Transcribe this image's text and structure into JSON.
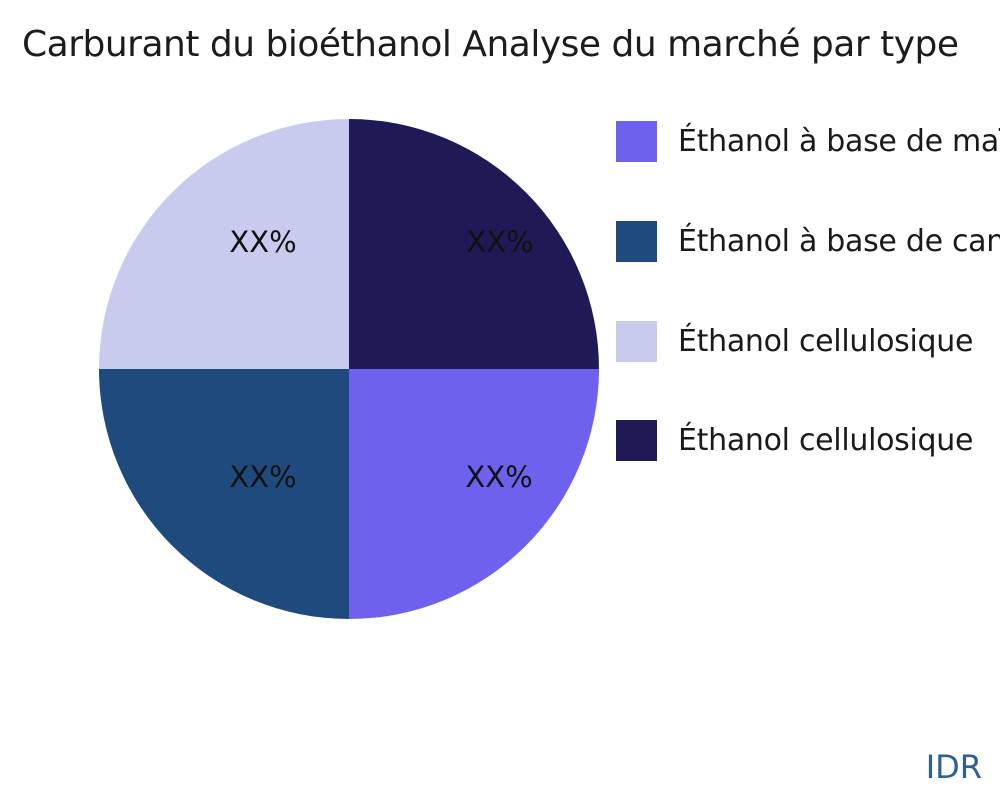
{
  "title": "Carburant du bioéthanol Analyse du marché par type",
  "watermark": "IDR",
  "colors": {
    "background": "#ffffff",
    "title_text": "#1c1c1c",
    "label_text": "#111111",
    "watermark_text": "#2e6193"
  },
  "chart_data": {
    "type": "pie",
    "title": "Carburant du bioéthanol Analyse du marché par type",
    "legend_position": "right",
    "slices": [
      {
        "label": "Éthanol à base de maïs",
        "value_pct": 25,
        "pct_label": "XX%",
        "color": "#6e61ee",
        "quadrant": "bottom-right"
      },
      {
        "label": "Éthanol à base de canne à sucre",
        "value_pct": 25,
        "pct_label": "XX%",
        "color": "#1f4a7d",
        "quadrant": "bottom-left"
      },
      {
        "label": "Éthanol cellulosique",
        "value_pct": 25,
        "pct_label": "XX%",
        "color": "#c8cbee",
        "quadrant": "top-left"
      },
      {
        "label": "Éthanol cellulosique",
        "value_pct": 25,
        "pct_label": "XX%",
        "color": "#1f1a56",
        "quadrant": "top-right"
      }
    ],
    "clockwise_from_top_slice_indices": [
      3,
      0,
      1,
      2
    ]
  }
}
